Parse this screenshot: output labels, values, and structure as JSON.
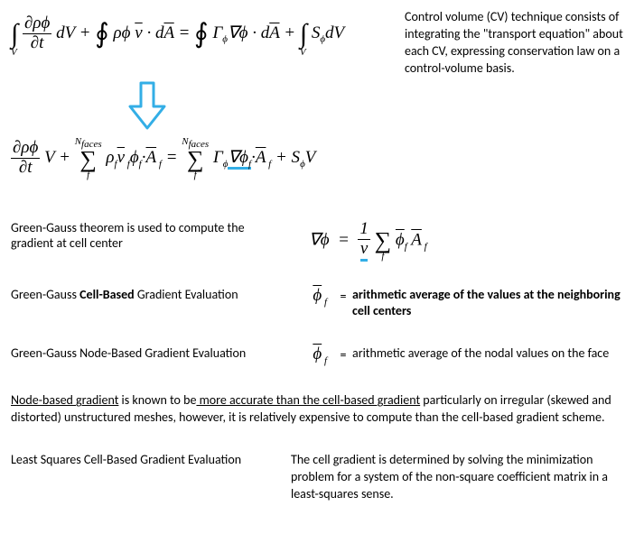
{
  "top": {
    "equation_html": "<span class='intblock'><span class='bigop'>∫</span><span class='limlow'>V</span></span> <span class='frac'><span class='num'>∂ρϕ</span><span>∂t</span></span> dV + <span class='bigop'>∮</span> ρϕ <span class='bar'>v</span> · d<span class='bar'>A</span> = <span class='bigop'>∮</span> Γ<span class='sub'>ϕ</span>∇ϕ · d<span class='bar'>A</span> + <span class='intblock'><span class='bigop'>∫</span><span class='limlow'>V</span></span> S<span class='sub'>ϕ</span>dV",
    "explain": "Control volume (CV) technique consists of integrating the \"transport equation\" about each CV, expressing conservation law on a control-volume basis."
  },
  "arrow": {
    "stroke": "#33aee6",
    "width": 42,
    "height": 55
  },
  "discrete": {
    "equation_html": "<span class='frac'><span class='num'>∂ρϕ</span><span>∂t</span></span> V + <span class='sumblock'><span class='lim'>N<span class='sub'>faces</span></span><span class='sig'>∑</span><span class='lim'>f</span></span> ρ<span class='sub'>f</span><span class='bar'>v</span><span class='sub'> f</span>ϕ<span class='sub'>f</span>·<span class='bar'>A</span><span class='sub'> f</span> = <span class='sumblock'><span class='lim'>N<span class='sub'>faces</span></span><span class='sig'>∑</span><span class='lim'>f</span></span> Γ<span class='sub'>ϕ</span><span class='underline-hl'>∇ϕ<span class='sub'>f</span></span>·<span class='bar'>A</span><span class='sub'> f</span> + S<span class='sub'>ϕ</span>V"
  },
  "green_gauss": {
    "label": "Green-Gauss theorem is used to compute the gradient at cell center",
    "eq_html": "∇ϕ &nbsp;=&nbsp; <span class='frac'><span class='num'>1</span><span><span class='nu-underline'>ν</span></span></span> <span class='sumblock'><span class='lim'>&nbsp;</span><span class='sig'>∑</span><span class='lim'>f</span></span> <span class='bar'>ϕ</span><span class='sub'>f</span> <span class='bar'>A</span><span class='sub'> f</span>"
  },
  "cell_based": {
    "label_pre": "Green-Gauss ",
    "label_bold": "Cell-Based",
    "label_post": " Gradient Evaluation",
    "phi_html": "<span class='bar'>ϕ</span><span class='sub'> f</span>",
    "desc": "arithmetic average of the values at the neighboring cell centers",
    "desc_bold": true
  },
  "node_based": {
    "label": "Green-Gauss Node-Based Gradient Evaluation",
    "phi_html": "<span class='bar'>ϕ</span><span class='sub'> f</span>",
    "desc": "arithmetic average of the nodal values on the face",
    "desc_bold": false
  },
  "note": {
    "p1": "Node-based gradient",
    "p2": " is known to be",
    "p3": " more accurate than the cell-based gradient",
    "p4": " particularly on irregular (skewed and distorted) unstructured meshes, however, it is relatively expensive to compute than the cell-based gradient scheme."
  },
  "least_squares": {
    "label": "Least Squares Cell-Based Gradient Evaluation",
    "desc": "The cell gradient is determined by solving the minimization problem for a system of  the  non-square coefficient  matrix in a least-squares sense."
  }
}
